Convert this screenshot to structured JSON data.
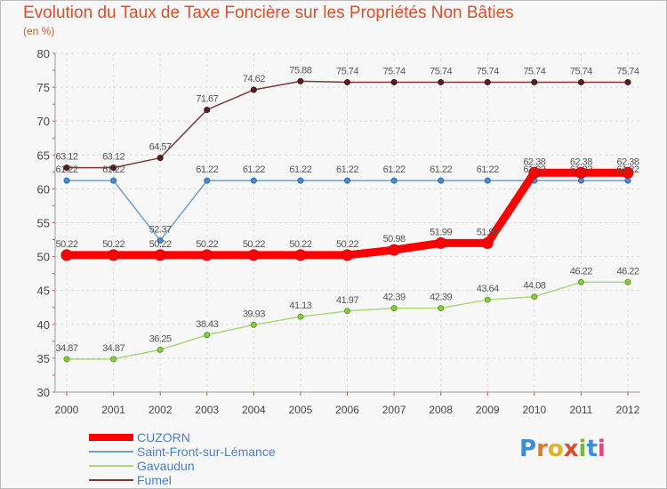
{
  "header": {
    "title": "Evolution du Taux de Taxe Foncière sur les Propriétés Non Bâties",
    "unit": "(en %)"
  },
  "logo": {
    "letters": [
      "P",
      "r",
      "o",
      "x",
      "i",
      "t",
      "i"
    ],
    "colors": [
      "#3a8fd8",
      "#e07a2a",
      "#e2b21c",
      "#e04a2a",
      "#7ab83a",
      "#3a8fd8",
      "#e04a7a"
    ]
  },
  "chart_data": {
    "type": "line",
    "title": "Evolution du Taux de Taxe Foncière sur les Propriétés Non Bâties",
    "ylabel": "(en %)",
    "xlabel": "",
    "x": [
      "2000",
      "2001",
      "2002",
      "2003",
      "2004",
      "2005",
      "2006",
      "2007",
      "2008",
      "2009",
      "2010",
      "2011",
      "2012"
    ],
    "ylim": [
      30,
      80
    ],
    "yticks": [
      30,
      35,
      40,
      45,
      50,
      55,
      60,
      65,
      70,
      75,
      80
    ],
    "grid": true,
    "legend_position": "bottom-left",
    "series": [
      {
        "name": "CUZORN",
        "color": "#ff0000",
        "values": [
          50.22,
          50.22,
          50.22,
          50.22,
          50.22,
          50.22,
          50.22,
          50.98,
          51.99,
          51.99,
          62.38,
          62.38,
          62.38
        ],
        "labels": [
          "50.22",
          "50.22",
          "50.22",
          "50.22",
          "50.22",
          "50.22",
          "50.22",
          "50.98",
          "51.99",
          "51.99",
          "62.38",
          "62.38",
          "62.38"
        ]
      },
      {
        "name": "Saint-Front-sur-Lémance",
        "color": "#6fa0d0",
        "values": [
          61.22,
          61.22,
          52.37,
          61.22,
          61.22,
          61.22,
          61.22,
          61.22,
          61.22,
          61.22,
          61.22,
          61.22,
          61.22
        ],
        "labels": [
          "61.22",
          "61.22",
          "52.37",
          "61.22",
          "61.22",
          "61.22",
          "61.22",
          "61.22",
          "61.22",
          "61.22",
          "61.22",
          "61.22",
          "61.22"
        ]
      },
      {
        "name": "Gavaudun",
        "color": "#a8d878",
        "values": [
          34.87,
          34.87,
          36.25,
          38.43,
          39.93,
          41.13,
          41.97,
          42.39,
          42.39,
          43.64,
          44.08,
          46.22,
          46.22
        ],
        "labels": [
          "34.87",
          "34.87",
          "36.25",
          "38.43",
          "39.93",
          "41.13",
          "41.97",
          "42.39",
          "42.39",
          "43.64",
          "44.08",
          "46.22",
          "46.22"
        ]
      },
      {
        "name": "Fumel",
        "color": "#7a3a3a",
        "values": [
          63.12,
          63.12,
          64.57,
          71.67,
          74.62,
          75.88,
          75.74,
          75.74,
          75.74,
          75.74,
          75.74,
          75.74,
          75.74
        ],
        "labels": [
          "63.12",
          "63.12",
          "64.57",
          "71.67",
          "74.62",
          "75.88",
          "75.74",
          "75.74",
          "75.74",
          "75.74",
          "75.74",
          "75.74",
          "75.74"
        ]
      }
    ]
  }
}
